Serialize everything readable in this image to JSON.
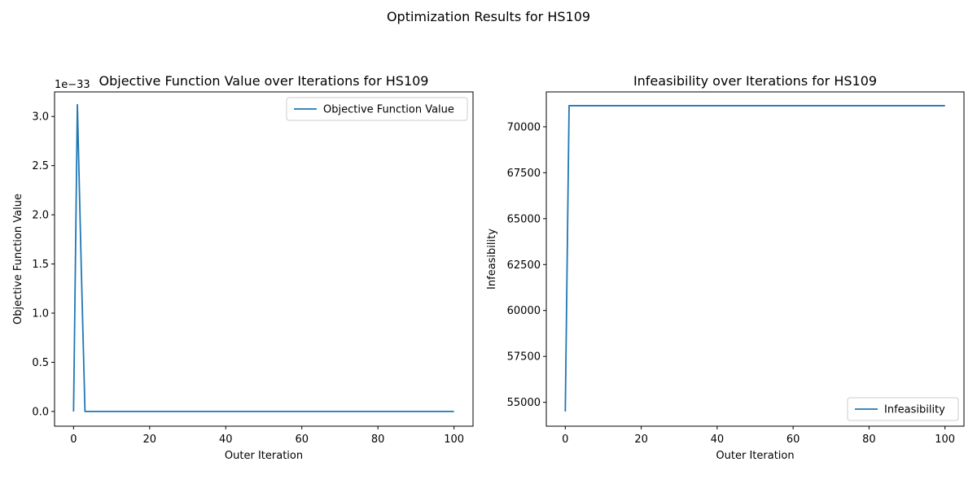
{
  "figure": {
    "suptitle": "Optimization Results for HS109"
  },
  "chart_data": [
    {
      "type": "line",
      "title": "Objective Function Value over Iterations for HS109",
      "xlabel": "Outer Iteration",
      "ylabel": "Objective Function Value",
      "y_offset_label": "1e−33",
      "xlim": [
        -5,
        105
      ],
      "ylim": [
        -0.15,
        3.25
      ],
      "x_ticks": [
        0,
        20,
        40,
        60,
        80,
        100
      ],
      "x_tick_labels": [
        "0",
        "20",
        "40",
        "60",
        "80",
        "100"
      ],
      "y_ticks": [
        0.0,
        0.5,
        1.0,
        1.5,
        2.0,
        2.5,
        3.0
      ],
      "y_tick_labels": [
        "0.0",
        "0.5",
        "1.0",
        "1.5",
        "2.0",
        "2.5",
        "3.0"
      ],
      "grid": false,
      "legend_position": "upper right",
      "series": [
        {
          "name": "Objective Function Value",
          "color": "#1f77b4",
          "x": [
            0,
            1,
            2,
            3,
            100
          ],
          "y": [
            0.0,
            3.12,
            1.5,
            0.0,
            0.0
          ]
        }
      ]
    },
    {
      "type": "line",
      "title": "Infeasibility over Iterations for HS109",
      "xlabel": "Outer Iteration",
      "ylabel": "Infeasibility",
      "xlim": [
        -5,
        105
      ],
      "ylim": [
        53700,
        71900
      ],
      "x_ticks": [
        0,
        20,
        40,
        60,
        80,
        100
      ],
      "x_tick_labels": [
        "0",
        "20",
        "40",
        "60",
        "80",
        "100"
      ],
      "y_ticks": [
        55000,
        57500,
        60000,
        62500,
        65000,
        67500,
        70000
      ],
      "y_tick_labels": [
        "55000",
        "57500",
        "60000",
        "62500",
        "65000",
        "67500",
        "70000"
      ],
      "grid": false,
      "legend_position": "lower right",
      "series": [
        {
          "name": "Infeasibility",
          "color": "#1f77b4",
          "x": [
            0,
            1,
            100
          ],
          "y": [
            54500,
            71150,
            71150
          ]
        }
      ]
    }
  ]
}
